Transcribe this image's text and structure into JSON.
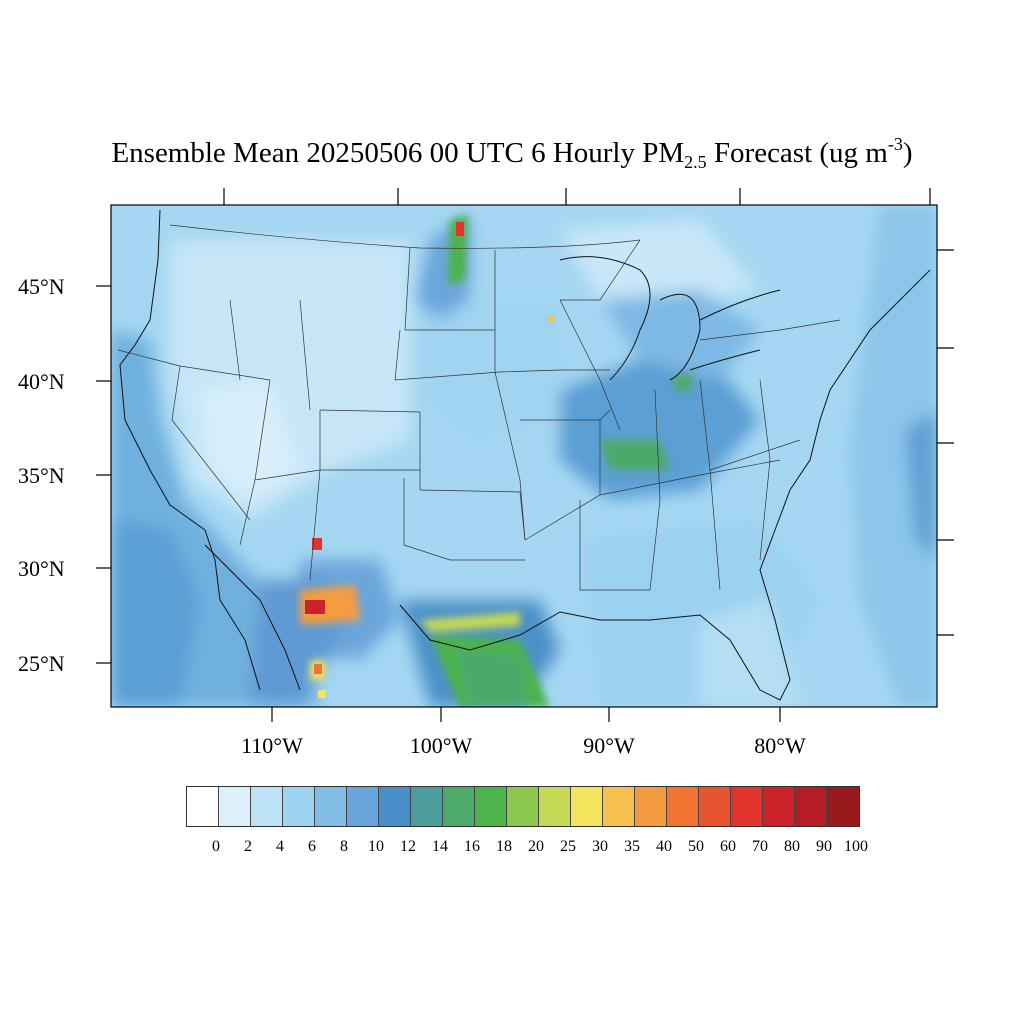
{
  "title": {
    "prefix": "Ensemble Mean 20250506 00 UTC 6 Hourly PM",
    "subscript": "2.5",
    "middle": " Forecast (ug m",
    "superscript": "-3",
    "suffix": ")"
  },
  "map": {
    "lat_labels": [
      "45°N",
      "40°N",
      "35°N",
      "30°N",
      "25°N"
    ],
    "lon_labels": [
      "110°W",
      "100°W",
      "90°W",
      "80°W"
    ],
    "hotspots": [
      {
        "name": "north-dakota-plume",
        "level": "high"
      },
      {
        "name": "northern-mexico-fires",
        "level": "very-high"
      },
      {
        "name": "gulf-coast-band",
        "level": "medium"
      },
      {
        "name": "ohio-valley",
        "level": "medium"
      }
    ]
  },
  "colorbar": {
    "labels": [
      "0",
      "2",
      "4",
      "6",
      "8",
      "10",
      "12",
      "14",
      "16",
      "18",
      "20",
      "25",
      "30",
      "35",
      "40",
      "50",
      "60",
      "70",
      "80",
      "90",
      "100"
    ],
    "colors": [
      "#ffffff",
      "#ddeffa",
      "#bde2f6",
      "#9dd4f1",
      "#82bde6",
      "#6aa6db",
      "#4a8ec9",
      "#4b9e9c",
      "#4caa6a",
      "#4cb44b",
      "#8cc850",
      "#c6d957",
      "#f5e55d",
      "#f6c04e",
      "#f59b3f",
      "#f27430",
      "#e85330",
      "#e1342c",
      "#cc2229",
      "#b51c24",
      "#991a1c"
    ]
  }
}
